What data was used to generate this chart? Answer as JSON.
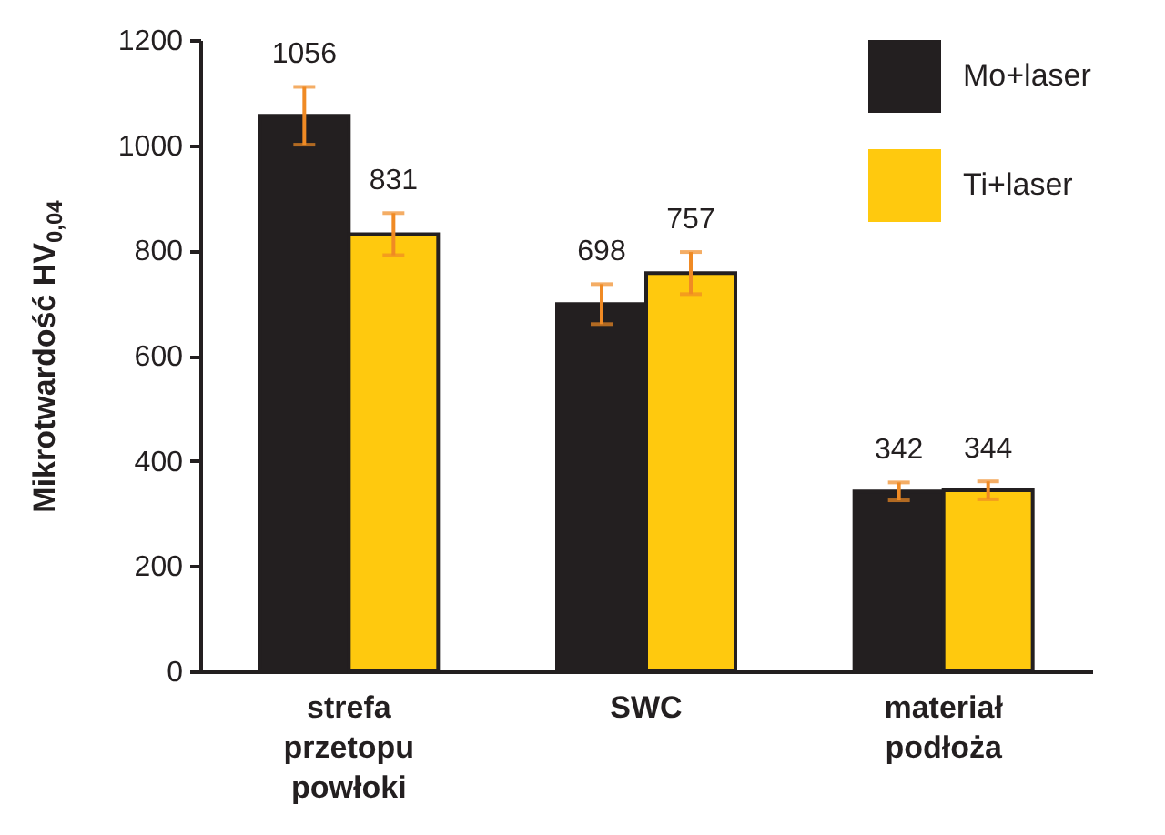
{
  "chart_data": {
    "type": "bar",
    "ylabel": "Mikrotwardość HV$_{0,04}$",
    "categories": [
      "strefa przetopu powłoki",
      "SWC",
      "materiał podłoża"
    ],
    "series": [
      {
        "name": "Mo+laser",
        "color": "#231f20",
        "values": [
          1056,
          698,
          342
        ],
        "errors": [
          55,
          38,
          17
        ]
      },
      {
        "name": "Ti+laser",
        "color": "#ffc90e",
        "values": [
          831,
          757,
          344
        ],
        "errors": [
          40,
          40,
          17
        ]
      }
    ],
    "ylim": [
      0,
      1200
    ],
    "yticks": [
      0,
      200,
      400,
      600,
      800,
      1000,
      1200
    ],
    "legend": "top right",
    "data_labels": true
  }
}
